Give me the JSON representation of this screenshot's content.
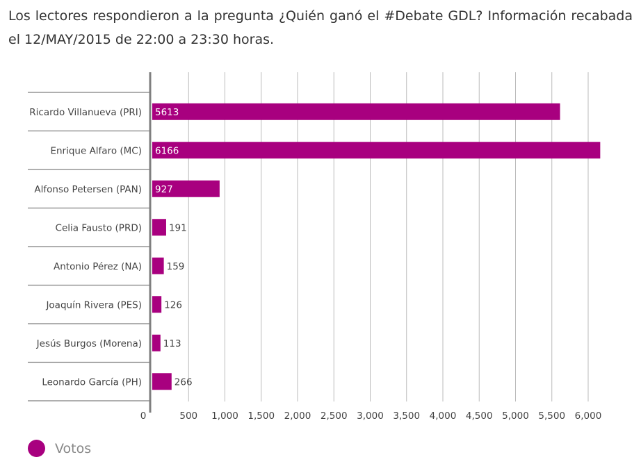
{
  "intro_text": "Los lectores respondieron a la pregunta ¿Quién ganó el #Debate GDL? Información recabada el 12/MAY/2015 de 22:00 a 23:30 horas.",
  "colors": {
    "bar": "#A8007F",
    "grid": "#bbbbbb",
    "axis": "#7f7f7f",
    "label_inside": "#ffffff",
    "label_outside": "#444444"
  },
  "chart_data": {
    "type": "bar",
    "orientation": "horizontal",
    "categories": [
      "Ricardo Villanueva (PRI)",
      "Enrique Alfaro (MC)",
      "Alfonso Petersen (PAN)",
      "Celia Fausto (PRD)",
      "Antonio Pérez (NA)",
      "Joaquín Rivera (PES)",
      "Jesús Burgos (Morena)",
      "Leonardo García (PH)"
    ],
    "series": [
      {
        "name": "Votos",
        "values": [
          5613,
          6166,
          927,
          191,
          159,
          126,
          113,
          266
        ]
      }
    ],
    "x_ticks": [
      {
        "value": 0,
        "label": "0"
      },
      {
        "value": 500,
        "label": "500"
      },
      {
        "value": 1000,
        "label": "1,000"
      },
      {
        "value": 1500,
        "label": "1,500"
      },
      {
        "value": 2000,
        "label": "2,000"
      },
      {
        "value": 2500,
        "label": "2,500"
      },
      {
        "value": 3000,
        "label": "3,000"
      },
      {
        "value": 3500,
        "label": "3,500"
      },
      {
        "value": 4000,
        "label": "4,000"
      },
      {
        "value": 4500,
        "label": "4,500"
      },
      {
        "value": 5000,
        "label": "5,000"
      },
      {
        "value": 5500,
        "label": "5,500"
      },
      {
        "value": 6000,
        "label": "6,000"
      }
    ],
    "xlim": [
      0,
      6250
    ],
    "grid": true,
    "legend_position": "bottom-left"
  }
}
